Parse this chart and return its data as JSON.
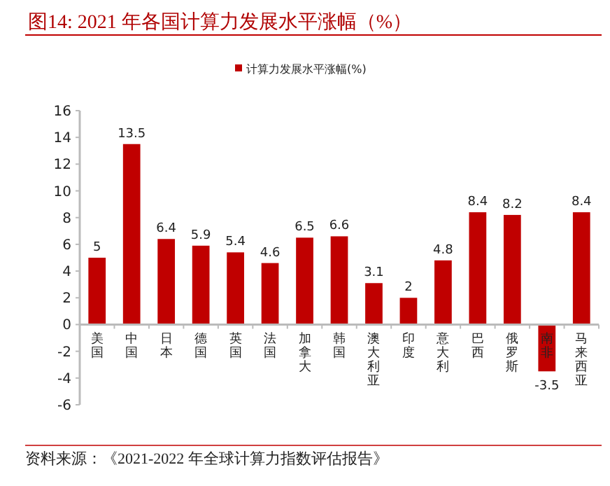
{
  "chart_data": {
    "type": "bar",
    "title": "图14:  2021 年各国计算力发展水平涨幅（%）",
    "categories": [
      "美国",
      "中国",
      "日本",
      "德国",
      "英国",
      "法国",
      "加拿大",
      "韩国",
      "澳大利亚",
      "印度",
      "意大利",
      "巴西",
      "俄罗斯",
      "南非",
      "马来西亚"
    ],
    "series": [
      {
        "name": "计算力发展水平涨幅(%)",
        "color": "#c00000",
        "values": [
          5,
          13.5,
          6.4,
          5.9,
          5.4,
          4.6,
          6.5,
          6.6,
          3.1,
          2,
          4.8,
          8.4,
          8.2,
          -3.5,
          8.4
        ]
      }
    ],
    "ylim": [
      -6,
      16
    ],
    "yticks": [
      -6,
      -4,
      -2,
      0,
      2,
      4,
      6,
      8,
      10,
      12,
      14,
      16
    ],
    "data_labels": true,
    "legend": "top",
    "grid": false,
    "annotations": [
      "资料来源：《2021-2022 年全球计算力指数评估报告》"
    ]
  }
}
